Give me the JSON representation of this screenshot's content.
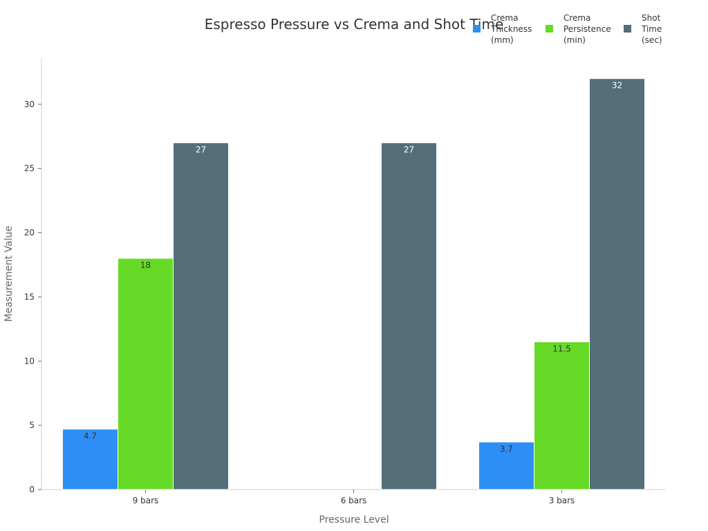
{
  "chart_data": {
    "type": "bar",
    "title": "Espresso Pressure vs Crema and Shot Time",
    "xlabel": "Pressure Level",
    "ylabel": "Measurement Value",
    "categories": [
      "9 bars",
      "6 bars",
      "3 bars"
    ],
    "ylim": [
      0,
      33.6
    ],
    "yticks": [
      0,
      5,
      10,
      15,
      20,
      25,
      30
    ],
    "grid": false,
    "legend_position": "top-right",
    "series": [
      {
        "name": "Crema Thickness (mm)",
        "legend_lines": [
          "Crema",
          "Thickness",
          "(mm)"
        ],
        "color": "#2d8ff5",
        "label_color": "#333333",
        "values": [
          4.7,
          null,
          3.7
        ]
      },
      {
        "name": "Crema Persistence (min)",
        "legend_lines": [
          "Crema",
          "Persistence",
          "(min)"
        ],
        "color": "#66da26",
        "label_color": "#333333",
        "values": [
          18,
          null,
          11.5
        ]
      },
      {
        "name": "Shot Time (sec)",
        "legend_lines": [
          "Shot",
          "Time",
          "(sec)"
        ],
        "color": "#546e7a",
        "label_color": "#ffffff",
        "values": [
          27,
          27,
          32
        ]
      }
    ]
  }
}
